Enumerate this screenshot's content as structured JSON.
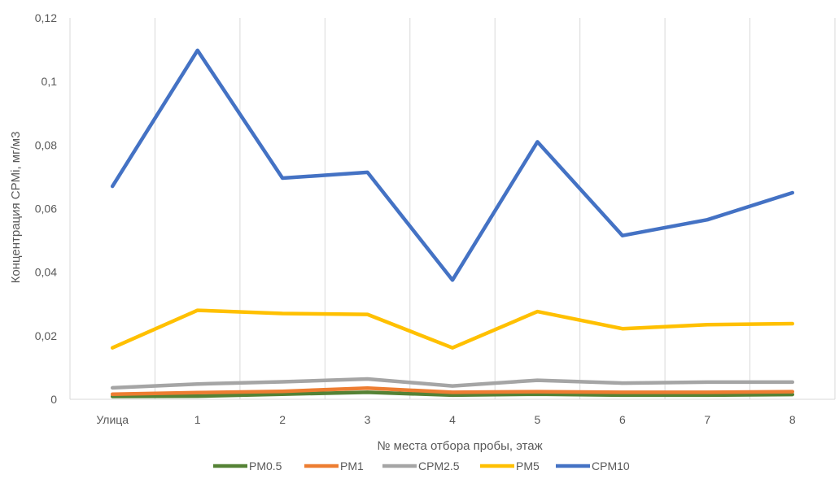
{
  "chart_data": {
    "type": "line",
    "title": "",
    "xlabel": "№ места отбора пробы, этаж",
    "ylabel": "Концентрация СPMi, мг/м3",
    "ylim": [
      0,
      0.12
    ],
    "yticks": [
      0,
      0.02,
      0.04,
      0.06,
      0.08,
      0.1,
      0.12
    ],
    "ytick_labels": [
      "0",
      "0,02",
      "0,04",
      "0,06",
      "0,08",
      "0,1",
      "0,12"
    ],
    "categories": [
      "Улица",
      "1",
      "2",
      "3",
      "4",
      "5",
      "6",
      "7",
      "8"
    ],
    "grid": "vertical",
    "legend_position": "bottom",
    "series": [
      {
        "name": "PM0.5",
        "color": "#548235",
        "values": [
          0.0009,
          0.001,
          0.0016,
          0.0022,
          0.0013,
          0.0016,
          0.0013,
          0.0013,
          0.0015
        ]
      },
      {
        "name": "PM1",
        "color": "#ED7D31",
        "values": [
          0.0016,
          0.0021,
          0.0025,
          0.0035,
          0.0022,
          0.0024,
          0.0022,
          0.0022,
          0.0024
        ]
      },
      {
        "name": "CPM2.5",
        "color": "#A5A5A5",
        "values": [
          0.0036,
          0.0048,
          0.0055,
          0.0064,
          0.0042,
          0.006,
          0.0051,
          0.0054,
          0.0054
        ]
      },
      {
        "name": "PM5",
        "color": "#FFC000",
        "values": [
          0.0162,
          0.028,
          0.027,
          0.0267,
          0.0162,
          0.0276,
          0.0222,
          0.0235,
          0.0238
        ]
      },
      {
        "name": "CPM10",
        "color": "#4472C4",
        "values": [
          0.067,
          0.1098,
          0.0696,
          0.0714,
          0.0375,
          0.081,
          0.0515,
          0.0565,
          0.065
        ]
      }
    ]
  }
}
